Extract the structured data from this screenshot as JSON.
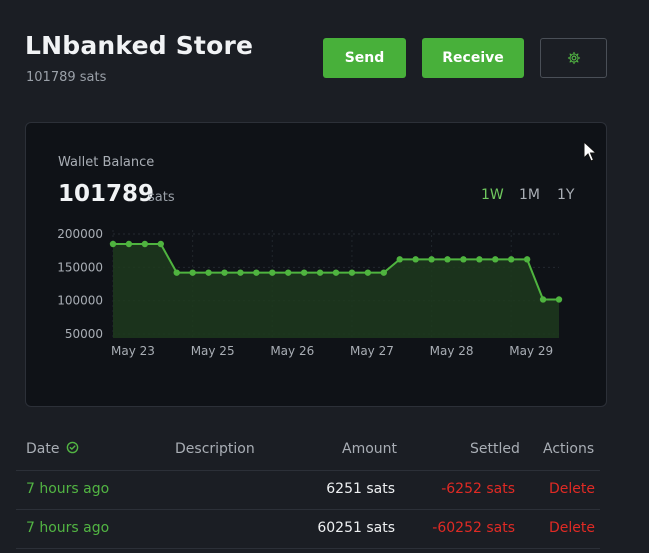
{
  "header": {
    "title": "LNbanked Store",
    "balance_text": "101789 sats",
    "send_label": "Send",
    "receive_label": "Receive",
    "settings_icon": "gear-icon"
  },
  "wallet": {
    "label": "Wallet Balance",
    "value": "101789",
    "unit": "sats",
    "ranges": [
      "1W",
      "1M",
      "1Y"
    ],
    "active_range": "1W"
  },
  "chart_data": {
    "type": "area",
    "yticks": [
      "200000",
      "150000",
      "100000",
      "50000"
    ],
    "ylim": [
      50000,
      200000
    ],
    "xticks": [
      "May 23",
      "May 25",
      "May 26",
      "May 27",
      "May 28",
      "May 29"
    ],
    "series": [
      {
        "values": [
          185000,
          185000,
          185000,
          185000,
          142000,
          142000,
          142000,
          142000,
          142000,
          142000,
          142000,
          142000,
          142000,
          142000,
          142000,
          142000,
          142000,
          142000,
          162000,
          162000,
          162000,
          162000,
          162000,
          162000,
          162000,
          162000,
          162000,
          101789,
          101789
        ]
      }
    ],
    "line_color": "#4fb43f",
    "fill_color": "#1d3a1d",
    "grid": true
  },
  "table": {
    "headers": {
      "date": "Date",
      "description": "Description",
      "amount": "Amount",
      "settled": "Settled",
      "actions": "Actions"
    },
    "rows": [
      {
        "date": "7 hours ago",
        "description": "",
        "amount": "6251 sats",
        "settled": "-6252 sats",
        "action": "Delete"
      },
      {
        "date": "7 hours ago",
        "description": "",
        "amount": "60251 sats",
        "settled": "-60252 sats",
        "action": "Delete"
      }
    ]
  }
}
